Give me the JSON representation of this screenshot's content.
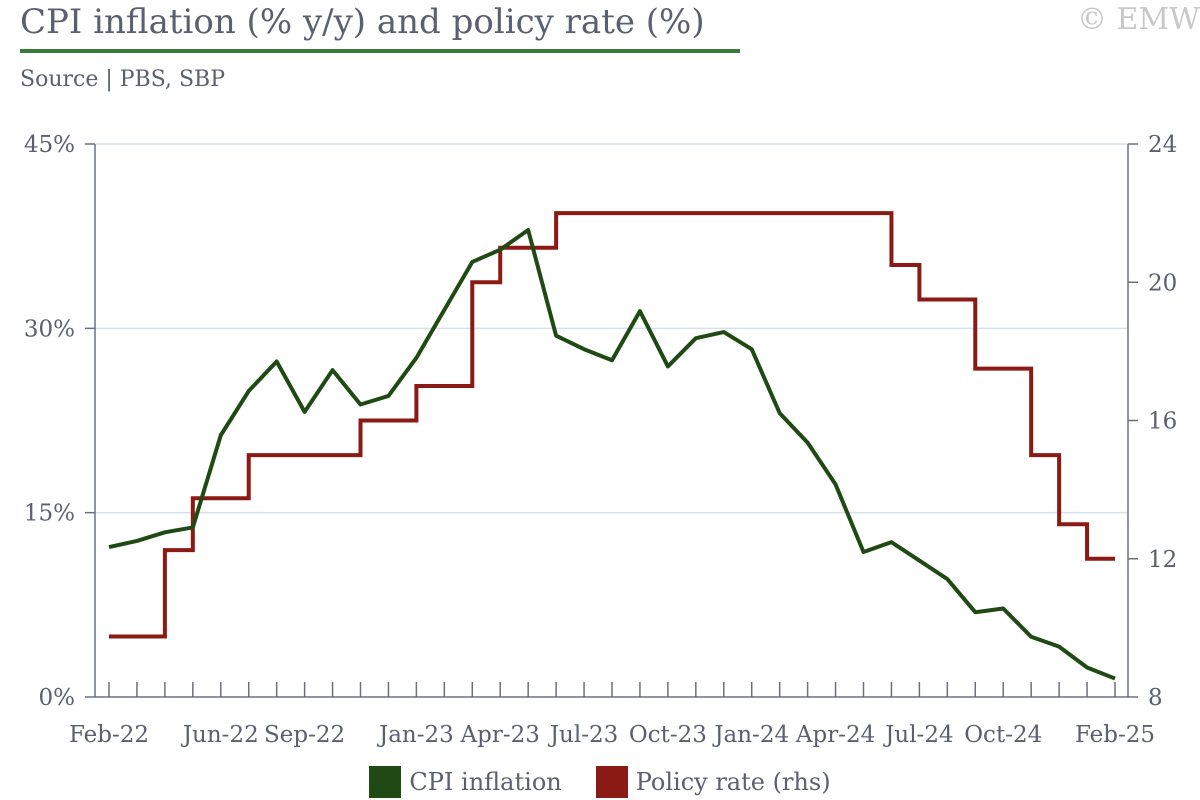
{
  "header": {
    "title": "CPI inflation (% y/y) and policy rate (%)",
    "subtitle": "Source | PBS, SBP",
    "watermark": "© EMW"
  },
  "colors": {
    "cpi": "#1f4a14",
    "policy": "#8b1a14",
    "axis": "#6a7080",
    "grid": "#d5e1ec",
    "title_rule": "#3a7a3a"
  },
  "chart_data": {
    "type": "line",
    "x": [
      "Feb-22",
      "Mar-22",
      "Apr-22",
      "May-22",
      "Jun-22",
      "Jul-22",
      "Aug-22",
      "Sep-22",
      "Oct-22",
      "Nov-22",
      "Dec-22",
      "Jan-23",
      "Feb-23",
      "Mar-23",
      "Apr-23",
      "May-23",
      "Jun-23",
      "Jul-23",
      "Aug-23",
      "Sep-23",
      "Oct-23",
      "Nov-23",
      "Dec-23",
      "Jan-24",
      "Feb-24",
      "Mar-24",
      "Apr-24",
      "May-24",
      "Jun-24",
      "Jul-24",
      "Aug-24",
      "Sep-24",
      "Oct-24",
      "Nov-24",
      "Dec-24",
      "Jan-25",
      "Feb-25"
    ],
    "x_tick_labels": [
      "Feb-22",
      "Jun-22",
      "Sep-22",
      "Jan-23",
      "Apr-23",
      "Jul-23",
      "Oct-23",
      "Jan-24",
      "Apr-24",
      "Jul-24",
      "Oct-24",
      "Feb-25"
    ],
    "series": [
      {
        "name": "CPI inflation",
        "axis": "left",
        "step": false,
        "values": [
          12.2,
          12.7,
          13.4,
          13.8,
          21.3,
          24.9,
          27.3,
          23.2,
          26.6,
          23.8,
          24.5,
          27.6,
          31.5,
          35.4,
          36.4,
          38.0,
          29.4,
          28.3,
          27.4,
          31.4,
          26.9,
          29.2,
          29.7,
          28.3,
          23.1,
          20.7,
          17.3,
          11.8,
          12.6,
          11.1,
          9.6,
          6.9,
          7.2,
          4.9,
          4.1,
          2.4,
          1.5
        ]
      },
      {
        "name": "Policy rate (rhs)",
        "axis": "right",
        "step": true,
        "values": [
          9.75,
          9.75,
          12.25,
          13.75,
          13.75,
          15.0,
          15.0,
          15.0,
          15.0,
          16.0,
          16.0,
          17.0,
          17.0,
          20.0,
          21.0,
          21.0,
          22.0,
          22.0,
          22.0,
          22.0,
          22.0,
          22.0,
          22.0,
          22.0,
          22.0,
          22.0,
          22.0,
          22.0,
          20.5,
          19.5,
          19.5,
          17.5,
          17.5,
          15.0,
          13.0,
          12.0,
          12.0
        ]
      }
    ],
    "y_left": {
      "ticks": [
        0,
        15,
        30,
        45
      ],
      "tick_labels": [
        "0%",
        "15%",
        "30%",
        "45%"
      ],
      "ylim": [
        0,
        45
      ]
    },
    "y_right": {
      "ticks": [
        8,
        12,
        16,
        20,
        24
      ],
      "tick_labels": [
        "8",
        "12",
        "16",
        "20",
        "24"
      ],
      "ylim": [
        8,
        24
      ]
    },
    "grid": "horizontal",
    "legend": {
      "position": "bottom",
      "items": [
        "CPI inflation",
        "Policy rate (rhs)"
      ]
    }
  }
}
